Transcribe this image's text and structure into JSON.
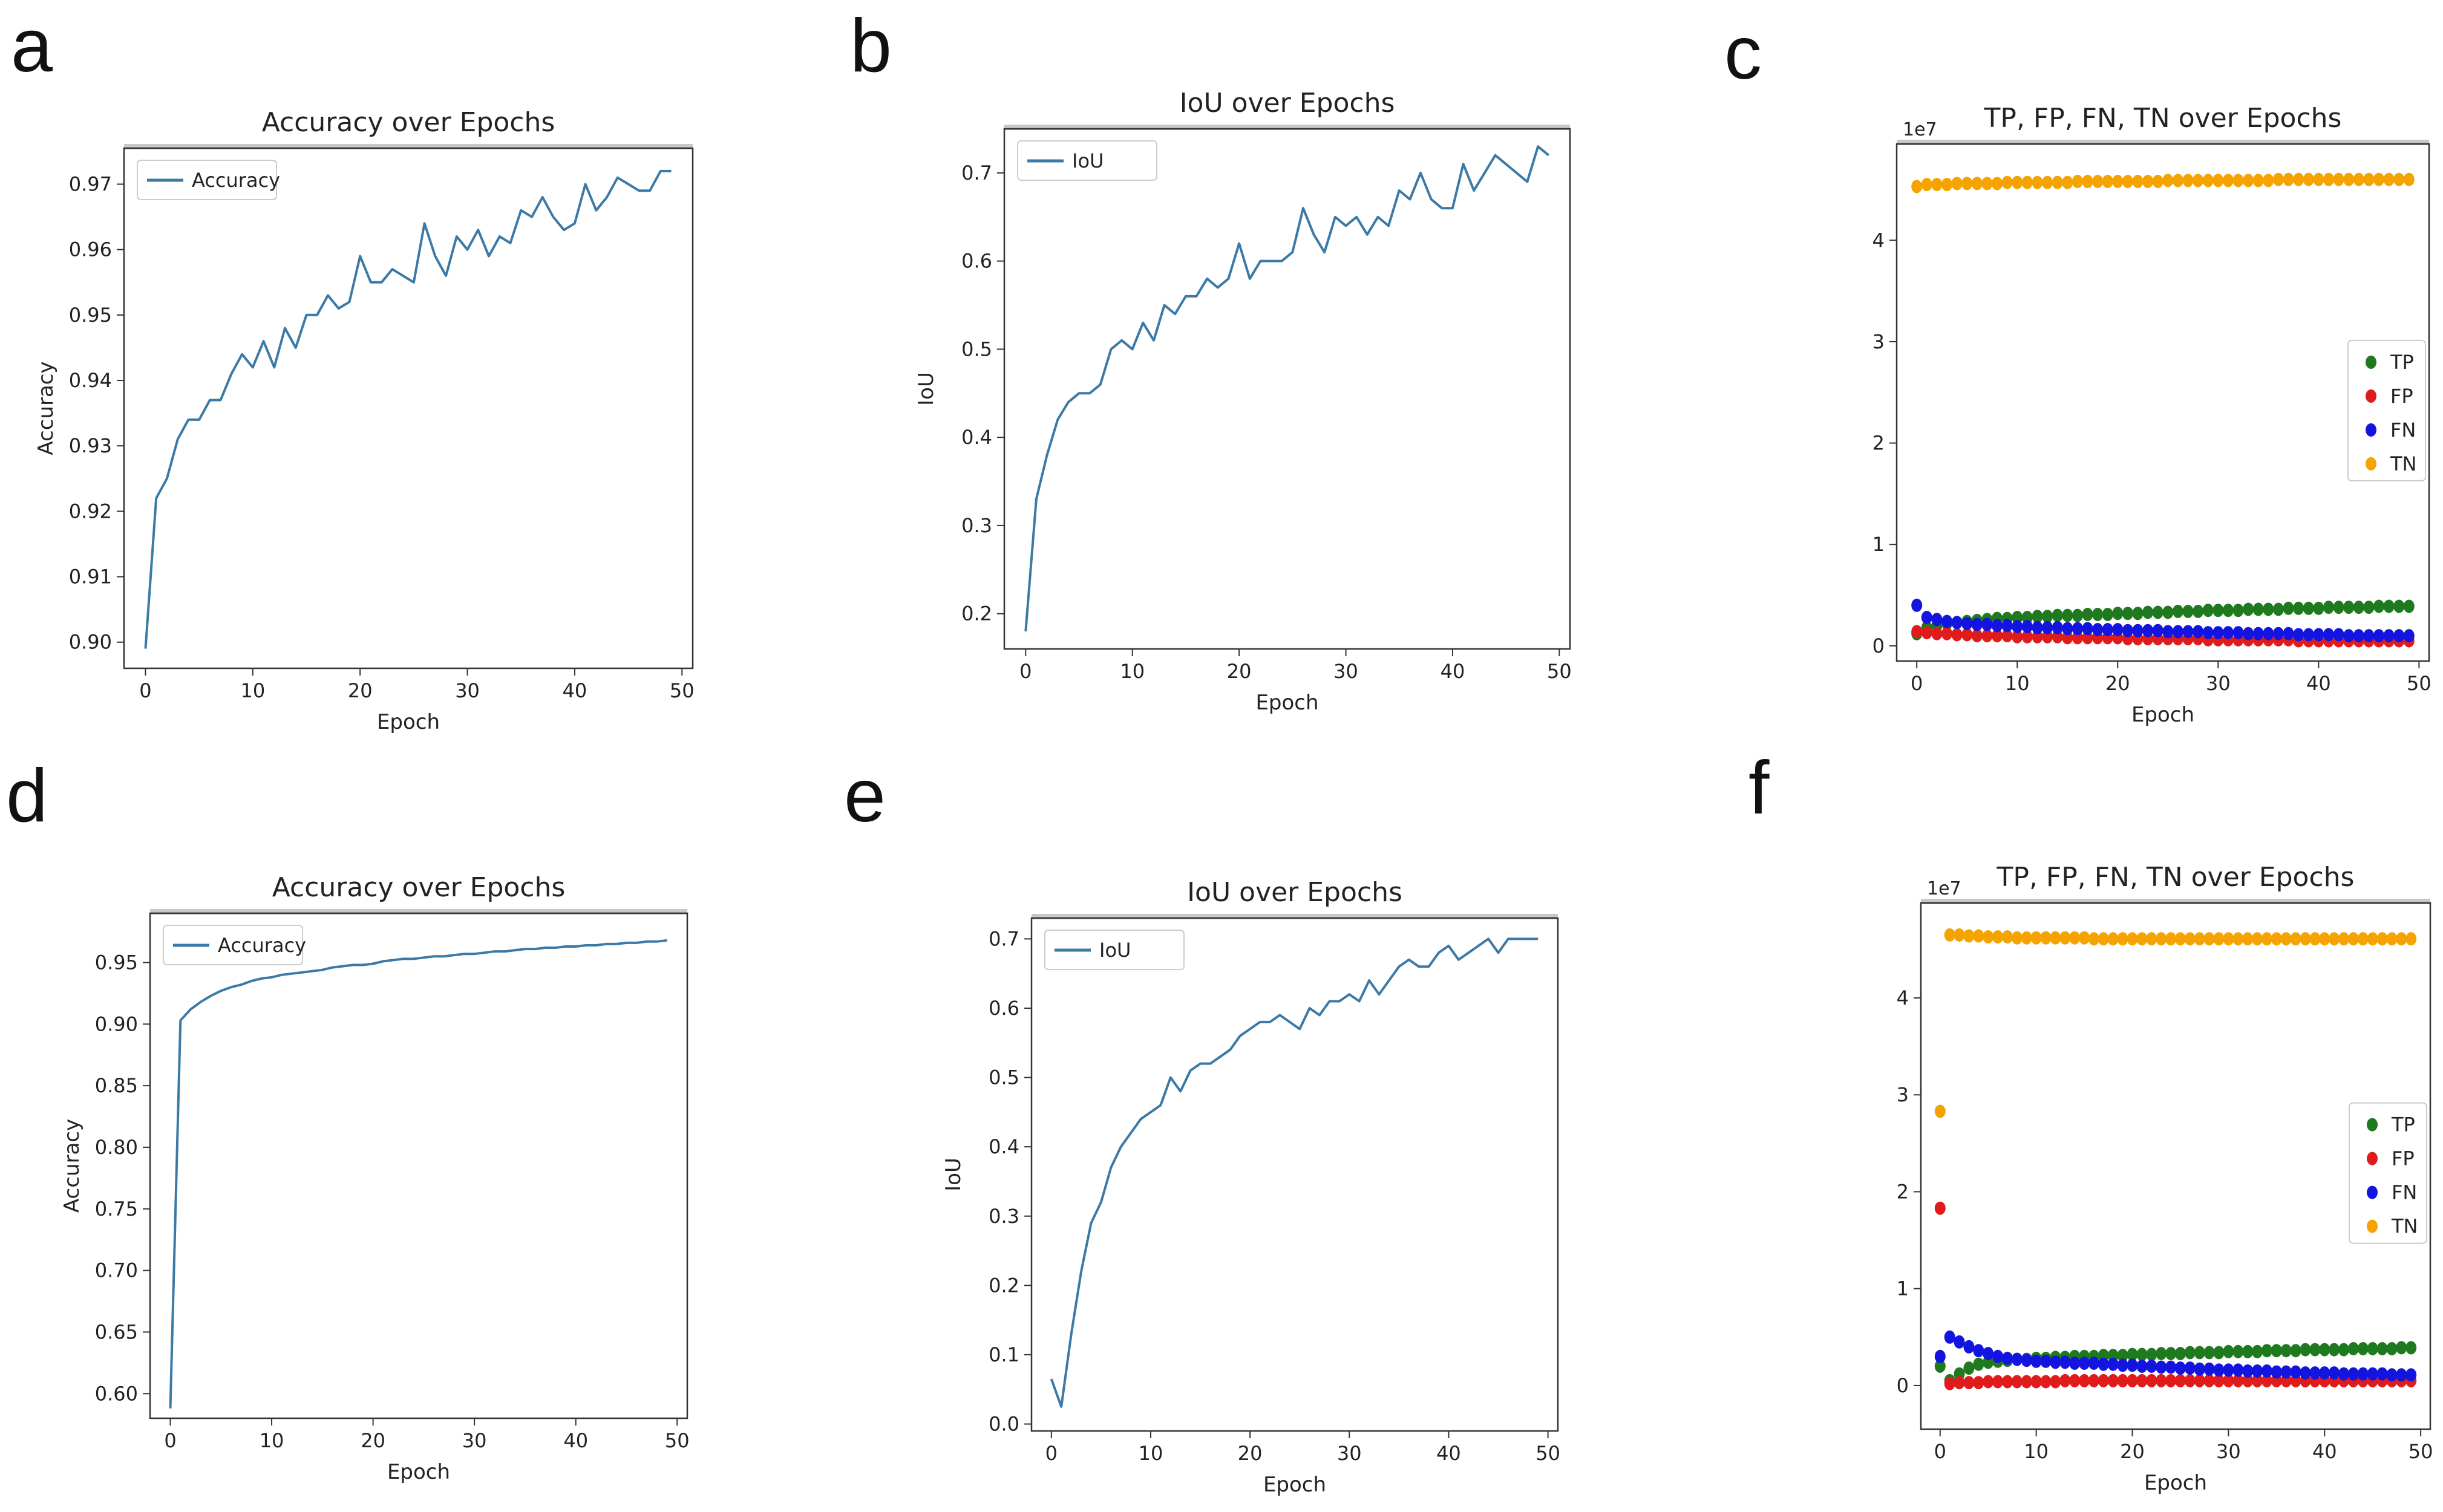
{
  "figure": {
    "panel_labels": [
      "a",
      "b",
      "c",
      "d",
      "e",
      "f"
    ]
  },
  "colors": {
    "line": "#3b7aa6",
    "TP": "#1f7a1f",
    "FP": "#e01b1b",
    "FN": "#1414e0",
    "TN": "#f5a300",
    "axis": "#333333"
  },
  "chart_data": [
    {
      "panel": "a",
      "type": "line",
      "title": "Accuracy over Epochs",
      "xlabel": "Epoch",
      "ylabel": "Accuracy",
      "xlim": [
        -2,
        51
      ],
      "ylim": [
        0.896,
        0.9755
      ],
      "xticks": [
        0,
        10,
        20,
        30,
        40,
        50
      ],
      "yticks": [
        0.9,
        0.91,
        0.92,
        0.93,
        0.94,
        0.95,
        0.96,
        0.97
      ],
      "yticklabels": [
        "0.90",
        "0.91",
        "0.92",
        "0.93",
        "0.94",
        "0.95",
        "0.96",
        "0.97"
      ],
      "legend": "top-left",
      "series": [
        {
          "name": "Accuracy",
          "values": [
            0.899,
            0.922,
            0.925,
            0.931,
            0.934,
            0.934,
            0.937,
            0.937,
            0.941,
            0.944,
            0.942,
            0.946,
            0.942,
            0.948,
            0.945,
            0.95,
            0.95,
            0.953,
            0.951,
            0.952,
            0.959,
            0.955,
            0.955,
            0.957,
            0.956,
            0.955,
            0.964,
            0.959,
            0.956,
            0.962,
            0.96,
            0.963,
            0.959,
            0.962,
            0.961,
            0.966,
            0.965,
            0.968,
            0.965,
            0.963,
            0.964,
            0.97,
            0.966,
            0.968,
            0.971,
            0.97,
            0.969,
            0.969,
            0.972,
            0.972
          ]
        }
      ]
    },
    {
      "panel": "b",
      "type": "line",
      "title": "IoU over Epochs",
      "xlabel": "Epoch",
      "ylabel": "IoU",
      "xlim": [
        -2,
        51
      ],
      "ylim": [
        0.16,
        0.75
      ],
      "xticks": [
        0,
        10,
        20,
        30,
        40,
        50
      ],
      "yticks": [
        0.2,
        0.3,
        0.4,
        0.5,
        0.6,
        0.7
      ],
      "yticklabels": [
        "0.2",
        "0.3",
        "0.4",
        "0.5",
        "0.6",
        "0.7"
      ],
      "legend": "top-left",
      "series": [
        {
          "name": "IoU",
          "values": [
            0.18,
            0.33,
            0.38,
            0.42,
            0.44,
            0.45,
            0.45,
            0.46,
            0.5,
            0.51,
            0.5,
            0.53,
            0.51,
            0.55,
            0.54,
            0.56,
            0.56,
            0.58,
            0.57,
            0.58,
            0.62,
            0.58,
            0.6,
            0.6,
            0.6,
            0.61,
            0.66,
            0.63,
            0.61,
            0.65,
            0.64,
            0.65,
            0.63,
            0.65,
            0.64,
            0.68,
            0.67,
            0.7,
            0.67,
            0.66,
            0.66,
            0.71,
            0.68,
            0.7,
            0.72,
            0.71,
            0.7,
            0.69,
            0.73,
            0.72
          ]
        }
      ]
    },
    {
      "panel": "c",
      "type": "scatter",
      "title": "TP, FP, FN, TN over Epochs",
      "xlabel": "Epoch",
      "ylabel": "",
      "scale_label": "1e7",
      "xlim": [
        -2,
        51
      ],
      "ylim": [
        -0.15,
        4.95
      ],
      "xticks": [
        0,
        10,
        20,
        30,
        40,
        50
      ],
      "yticks": [
        0,
        1,
        2,
        3,
        4
      ],
      "yticklabels": [
        "0",
        "1",
        "2",
        "3",
        "4"
      ],
      "legend": "center-right",
      "series": [
        {
          "name": "TP",
          "color_key": "TP",
          "values": [
            0.12,
            0.18,
            0.2,
            0.22,
            0.23,
            0.24,
            0.25,
            0.26,
            0.27,
            0.27,
            0.28,
            0.28,
            0.29,
            0.29,
            0.3,
            0.3,
            0.3,
            0.31,
            0.31,
            0.31,
            0.32,
            0.32,
            0.32,
            0.33,
            0.33,
            0.33,
            0.34,
            0.34,
            0.34,
            0.35,
            0.35,
            0.35,
            0.35,
            0.36,
            0.36,
            0.36,
            0.36,
            0.37,
            0.37,
            0.37,
            0.37,
            0.38,
            0.38,
            0.38,
            0.38,
            0.38,
            0.39,
            0.39,
            0.39,
            0.39
          ]
        },
        {
          "name": "FP",
          "color_key": "FP",
          "values": [
            0.14,
            0.13,
            0.12,
            0.12,
            0.11,
            0.11,
            0.1,
            0.1,
            0.1,
            0.1,
            0.09,
            0.09,
            0.09,
            0.09,
            0.09,
            0.08,
            0.08,
            0.08,
            0.08,
            0.08,
            0.08,
            0.07,
            0.07,
            0.07,
            0.07,
            0.07,
            0.07,
            0.07,
            0.07,
            0.06,
            0.06,
            0.06,
            0.06,
            0.06,
            0.06,
            0.06,
            0.06,
            0.06,
            0.05,
            0.05,
            0.05,
            0.05,
            0.05,
            0.05,
            0.05,
            0.05,
            0.05,
            0.05,
            0.05,
            0.05
          ]
        },
        {
          "name": "FN",
          "color_key": "FN",
          "values": [
            0.4,
            0.28,
            0.26,
            0.24,
            0.23,
            0.22,
            0.21,
            0.21,
            0.2,
            0.2,
            0.19,
            0.19,
            0.18,
            0.18,
            0.18,
            0.17,
            0.17,
            0.17,
            0.16,
            0.16,
            0.16,
            0.15,
            0.15,
            0.15,
            0.15,
            0.14,
            0.14,
            0.14,
            0.14,
            0.13,
            0.13,
            0.13,
            0.13,
            0.12,
            0.12,
            0.12,
            0.12,
            0.12,
            0.11,
            0.11,
            0.11,
            0.11,
            0.11,
            0.1,
            0.1,
            0.1,
            0.1,
            0.1,
            0.1,
            0.1
          ]
        },
        {
          "name": "TN",
          "color_key": "TN",
          "values": [
            4.53,
            4.55,
            4.55,
            4.55,
            4.56,
            4.56,
            4.56,
            4.56,
            4.56,
            4.57,
            4.57,
            4.57,
            4.57,
            4.57,
            4.57,
            4.57,
            4.58,
            4.58,
            4.58,
            4.58,
            4.58,
            4.58,
            4.58,
            4.58,
            4.58,
            4.59,
            4.59,
            4.59,
            4.59,
            4.59,
            4.59,
            4.59,
            4.59,
            4.59,
            4.59,
            4.59,
            4.6,
            4.6,
            4.6,
            4.6,
            4.6,
            4.6,
            4.6,
            4.6,
            4.6,
            4.6,
            4.6,
            4.6,
            4.6,
            4.6
          ]
        }
      ]
    },
    {
      "panel": "d",
      "type": "line",
      "title": "Accuracy over Epochs",
      "xlabel": "Epoch",
      "ylabel": "Accuracy",
      "xlim": [
        -2,
        51
      ],
      "ylim": [
        0.58,
        0.99
      ],
      "xticks": [
        0,
        10,
        20,
        30,
        40,
        50
      ],
      "yticks": [
        0.6,
        0.65,
        0.7,
        0.75,
        0.8,
        0.85,
        0.9,
        0.95
      ],
      "yticklabels": [
        "0.60",
        "0.65",
        "0.70",
        "0.75",
        "0.80",
        "0.85",
        "0.90",
        "0.95"
      ],
      "legend": "top-left",
      "series": [
        {
          "name": "Accuracy",
          "values": [
            0.588,
            0.903,
            0.912,
            0.918,
            0.923,
            0.927,
            0.93,
            0.932,
            0.935,
            0.937,
            0.938,
            0.94,
            0.941,
            0.942,
            0.943,
            0.944,
            0.946,
            0.947,
            0.948,
            0.948,
            0.949,
            0.951,
            0.952,
            0.953,
            0.953,
            0.954,
            0.955,
            0.955,
            0.956,
            0.957,
            0.957,
            0.958,
            0.959,
            0.959,
            0.96,
            0.961,
            0.961,
            0.962,
            0.962,
            0.963,
            0.963,
            0.964,
            0.964,
            0.965,
            0.965,
            0.966,
            0.966,
            0.967,
            0.967,
            0.968
          ]
        }
      ]
    },
    {
      "panel": "e",
      "type": "line",
      "title": "IoU over Epochs",
      "xlabel": "Epoch",
      "ylabel": "IoU",
      "xlim": [
        -2,
        51
      ],
      "ylim": [
        -0.01,
        0.73
      ],
      "xticks": [
        0,
        10,
        20,
        30,
        40,
        50
      ],
      "yticks": [
        0.0,
        0.1,
        0.2,
        0.3,
        0.4,
        0.5,
        0.6,
        0.7
      ],
      "yticklabels": [
        "0.0",
        "0.1",
        "0.2",
        "0.3",
        "0.4",
        "0.5",
        "0.6",
        "0.7"
      ],
      "legend": "top-left",
      "series": [
        {
          "name": "IoU",
          "values": [
            0.065,
            0.025,
            0.13,
            0.22,
            0.29,
            0.32,
            0.37,
            0.4,
            0.42,
            0.44,
            0.45,
            0.46,
            0.5,
            0.48,
            0.51,
            0.52,
            0.52,
            0.53,
            0.54,
            0.56,
            0.57,
            0.58,
            0.58,
            0.59,
            0.58,
            0.57,
            0.6,
            0.59,
            0.61,
            0.61,
            0.62,
            0.61,
            0.64,
            0.62,
            0.64,
            0.66,
            0.67,
            0.66,
            0.66,
            0.68,
            0.69,
            0.67,
            0.68,
            0.69,
            0.7,
            0.68,
            0.7,
            0.7,
            0.7,
            0.7
          ]
        }
      ]
    },
    {
      "panel": "f",
      "type": "scatter",
      "title": "TP, FP, FN, TN over Epochs",
      "xlabel": "Epoch",
      "ylabel": "",
      "scale_label": "1e7",
      "xlim": [
        -2,
        51
      ],
      "ylim": [
        -0.45,
        4.98
      ],
      "xticks": [
        0,
        10,
        20,
        30,
        40,
        50
      ],
      "yticks": [
        0,
        1,
        2,
        3,
        4
      ],
      "yticklabels": [
        "0",
        "1",
        "2",
        "3",
        "4"
      ],
      "legend": "center-right",
      "series": [
        {
          "name": "TP",
          "color_key": "TP",
          "values": [
            0.2,
            0.05,
            0.12,
            0.18,
            0.22,
            0.24,
            0.25,
            0.26,
            0.27,
            0.27,
            0.28,
            0.28,
            0.29,
            0.29,
            0.3,
            0.3,
            0.3,
            0.31,
            0.31,
            0.31,
            0.32,
            0.32,
            0.32,
            0.33,
            0.33,
            0.33,
            0.34,
            0.34,
            0.34,
            0.34,
            0.35,
            0.35,
            0.35,
            0.35,
            0.36,
            0.36,
            0.36,
            0.36,
            0.37,
            0.37,
            0.37,
            0.37,
            0.37,
            0.38,
            0.38,
            0.38,
            0.38,
            0.38,
            0.39,
            0.39
          ]
        },
        {
          "name": "FP",
          "color_key": "FP",
          "values": [
            1.83,
            0.02,
            0.03,
            0.03,
            0.03,
            0.04,
            0.04,
            0.04,
            0.04,
            0.04,
            0.04,
            0.04,
            0.04,
            0.05,
            0.05,
            0.05,
            0.05,
            0.05,
            0.05,
            0.05,
            0.05,
            0.05,
            0.05,
            0.05,
            0.05,
            0.05,
            0.05,
            0.05,
            0.05,
            0.05,
            0.05,
            0.05,
            0.05,
            0.05,
            0.05,
            0.05,
            0.05,
            0.05,
            0.05,
            0.05,
            0.05,
            0.05,
            0.05,
            0.05,
            0.05,
            0.05,
            0.05,
            0.05,
            0.05,
            0.05
          ]
        },
        {
          "name": "FN",
          "color_key": "FN",
          "values": [
            0.3,
            0.5,
            0.45,
            0.4,
            0.36,
            0.33,
            0.3,
            0.28,
            0.27,
            0.26,
            0.25,
            0.25,
            0.24,
            0.24,
            0.23,
            0.23,
            0.23,
            0.22,
            0.22,
            0.21,
            0.21,
            0.2,
            0.2,
            0.19,
            0.19,
            0.18,
            0.18,
            0.17,
            0.17,
            0.16,
            0.16,
            0.16,
            0.15,
            0.15,
            0.15,
            0.14,
            0.14,
            0.14,
            0.13,
            0.13,
            0.13,
            0.13,
            0.12,
            0.12,
            0.12,
            0.12,
            0.12,
            0.11,
            0.11,
            0.11
          ]
        },
        {
          "name": "TN",
          "color_key": "TN",
          "values": [
            2.83,
            4.65,
            4.65,
            4.64,
            4.64,
            4.63,
            4.63,
            4.63,
            4.62,
            4.62,
            4.62,
            4.62,
            4.62,
            4.62,
            4.62,
            4.62,
            4.61,
            4.61,
            4.61,
            4.61,
            4.61,
            4.61,
            4.61,
            4.61,
            4.61,
            4.61,
            4.61,
            4.61,
            4.61,
            4.61,
            4.61,
            4.61,
            4.61,
            4.61,
            4.61,
            4.61,
            4.61,
            4.61,
            4.61,
            4.61,
            4.61,
            4.61,
            4.61,
            4.61,
            4.61,
            4.61,
            4.61,
            4.61,
            4.61,
            4.61
          ]
        }
      ]
    }
  ]
}
